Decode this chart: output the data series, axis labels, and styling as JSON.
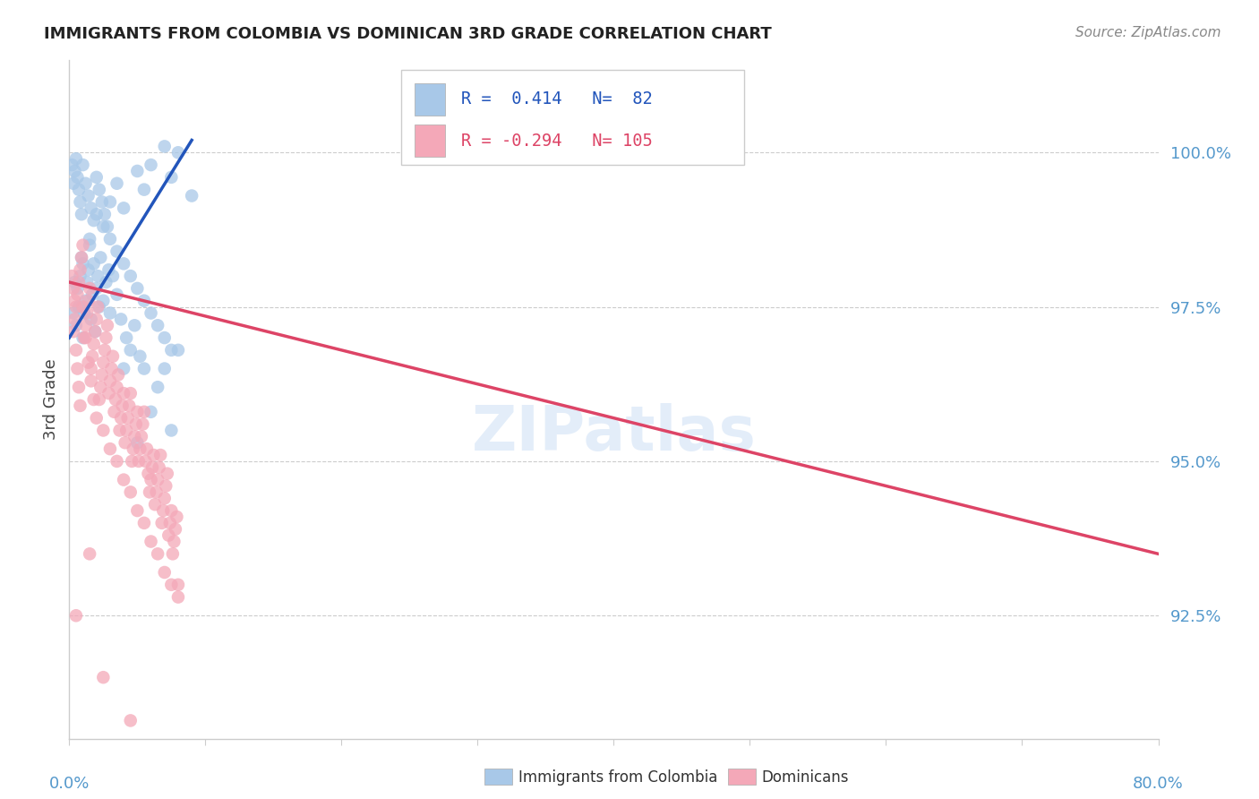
{
  "title": "IMMIGRANTS FROM COLOMBIA VS DOMINICAN 3RD GRADE CORRELATION CHART",
  "source": "Source: ZipAtlas.com",
  "ylabel": "3rd Grade",
  "ytick_values": [
    92.5,
    95.0,
    97.5,
    100.0
  ],
  "xmin": 0.0,
  "xmax": 80.0,
  "ymin": 90.5,
  "ymax": 101.5,
  "r_blue": 0.414,
  "n_blue": 82,
  "r_pink": -0.294,
  "n_pink": 105,
  "legend_label_blue": "Immigrants from Colombia",
  "legend_label_pink": "Dominicans",
  "blue_dot_color": "#a8c8e8",
  "pink_dot_color": "#f4a8b8",
  "blue_line_color": "#2255bb",
  "pink_line_color": "#dd4466",
  "axis_color": "#5599cc",
  "colombia_x": [
    0.5,
    0.6,
    0.7,
    0.8,
    0.9,
    1.0,
    1.1,
    1.2,
    1.3,
    1.4,
    1.5,
    1.6,
    1.7,
    1.8,
    1.9,
    2.0,
    2.1,
    2.2,
    2.3,
    2.5,
    2.7,
    2.9,
    3.0,
    3.2,
    3.5,
    3.8,
    4.0,
    4.2,
    4.5,
    4.8,
    5.0,
    5.2,
    5.5,
    6.0,
    6.5,
    7.0,
    7.5,
    8.0,
    0.3,
    0.4,
    1.0,
    1.5,
    2.0,
    2.5,
    3.0,
    3.5,
    4.0,
    5.0,
    5.5,
    6.0,
    7.0,
    7.5,
    8.0,
    9.0,
    0.2,
    0.3,
    0.4,
    0.5,
    0.6,
    0.7,
    0.8,
    0.9,
    1.0,
    1.2,
    1.4,
    1.6,
    1.8,
    2.0,
    2.2,
    2.4,
    2.6,
    2.8,
    3.0,
    3.5,
    4.0,
    4.5,
    5.0,
    5.5,
    6.0,
    6.5,
    7.0,
    7.5
  ],
  "colombia_y": [
    97.2,
    97.8,
    97.5,
    98.0,
    98.3,
    97.0,
    97.4,
    97.6,
    97.9,
    98.1,
    98.5,
    97.3,
    97.7,
    98.2,
    97.1,
    97.8,
    98.0,
    97.5,
    98.3,
    97.6,
    97.9,
    98.1,
    97.4,
    98.0,
    97.7,
    97.3,
    96.5,
    97.0,
    96.8,
    97.2,
    95.3,
    96.7,
    96.5,
    95.8,
    96.2,
    96.5,
    95.5,
    96.8,
    97.4,
    97.9,
    98.2,
    98.6,
    99.0,
    98.8,
    99.2,
    99.5,
    99.1,
    99.7,
    99.4,
    99.8,
    100.1,
    99.6,
    100.0,
    99.3,
    99.8,
    99.5,
    99.7,
    99.9,
    99.6,
    99.4,
    99.2,
    99.0,
    99.8,
    99.5,
    99.3,
    99.1,
    98.9,
    99.6,
    99.4,
    99.2,
    99.0,
    98.8,
    98.6,
    98.4,
    98.2,
    98.0,
    97.8,
    97.6,
    97.4,
    97.2,
    97.0,
    96.8
  ],
  "dominican_x": [
    0.3,
    0.4,
    0.5,
    0.6,
    0.7,
    0.8,
    0.9,
    1.0,
    1.1,
    1.2,
    1.3,
    1.4,
    1.5,
    1.6,
    1.7,
    1.8,
    1.9,
    2.0,
    2.1,
    2.2,
    2.3,
    2.4,
    2.5,
    2.6,
    2.7,
    2.8,
    2.9,
    3.0,
    3.1,
    3.2,
    3.3,
    3.4,
    3.5,
    3.6,
    3.7,
    3.8,
    3.9,
    4.0,
    4.1,
    4.2,
    4.3,
    4.4,
    4.5,
    4.6,
    4.7,
    4.8,
    4.9,
    5.0,
    5.1,
    5.2,
    5.3,
    5.4,
    5.5,
    5.6,
    5.7,
    5.8,
    5.9,
    6.0,
    6.1,
    6.2,
    6.3,
    6.4,
    6.5,
    6.6,
    6.7,
    6.8,
    6.9,
    7.0,
    7.1,
    7.2,
    7.3,
    7.4,
    7.5,
    7.6,
    7.7,
    7.8,
    7.9,
    8.0,
    0.2,
    0.3,
    0.4,
    0.5,
    0.6,
    0.7,
    0.8,
    1.0,
    1.2,
    1.4,
    1.6,
    1.8,
    2.0,
    2.5,
    3.0,
    3.5,
    4.0,
    4.5,
    5.0,
    5.5,
    6.0,
    6.5,
    7.0,
    7.5,
    8.0,
    0.5,
    1.5,
    2.5,
    4.5
  ],
  "dominican_y": [
    97.1,
    97.3,
    97.5,
    97.7,
    97.9,
    98.1,
    98.3,
    98.5,
    97.0,
    97.2,
    97.4,
    97.6,
    97.8,
    96.5,
    96.7,
    96.9,
    97.1,
    97.3,
    97.5,
    96.0,
    96.2,
    96.4,
    96.6,
    96.8,
    97.0,
    97.2,
    96.1,
    96.3,
    96.5,
    96.7,
    95.8,
    96.0,
    96.2,
    96.4,
    95.5,
    95.7,
    95.9,
    96.1,
    95.3,
    95.5,
    95.7,
    95.9,
    96.1,
    95.0,
    95.2,
    95.4,
    95.6,
    95.8,
    95.0,
    95.2,
    95.4,
    95.6,
    95.8,
    95.0,
    95.2,
    94.8,
    94.5,
    94.7,
    94.9,
    95.1,
    94.3,
    94.5,
    94.7,
    94.9,
    95.1,
    94.0,
    94.2,
    94.4,
    94.6,
    94.8,
    93.8,
    94.0,
    94.2,
    93.5,
    93.7,
    93.9,
    94.1,
    93.0,
    98.0,
    97.8,
    97.6,
    96.8,
    96.5,
    96.2,
    95.9,
    97.5,
    97.0,
    96.6,
    96.3,
    96.0,
    95.7,
    95.5,
    95.2,
    95.0,
    94.7,
    94.5,
    94.2,
    94.0,
    93.7,
    93.5,
    93.2,
    93.0,
    92.8,
    92.5,
    93.5,
    91.5,
    90.8
  ],
  "blue_line_x": [
    0.0,
    9.0
  ],
  "blue_line_y": [
    97.0,
    100.2
  ],
  "pink_line_x": [
    0.0,
    80.0
  ],
  "pink_line_y": [
    97.9,
    93.5
  ]
}
